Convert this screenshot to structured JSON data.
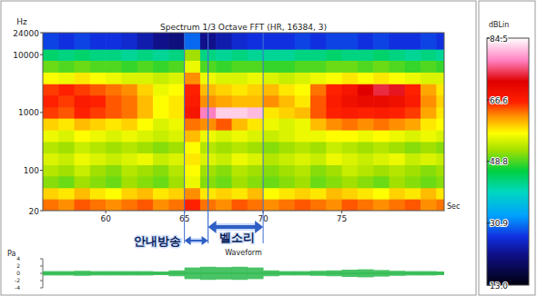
{
  "chart_data": {
    "type": "heatmap",
    "title": "Spectrum 1/3 Octave FFT (HR, 16384, 3)",
    "x_label": "Sec",
    "y_label": "Hz",
    "log": "y",
    "xlim": [
      56,
      81.5
    ],
    "xticks": [
      60,
      65,
      70,
      75
    ],
    "ylim": [
      20,
      24000
    ],
    "yticks": [
      20,
      100,
      1000,
      10000,
      24000
    ],
    "x_edges": [
      56,
      57,
      58,
      59,
      60,
      61,
      62,
      63,
      64,
      65,
      66,
      67,
      68,
      69,
      70,
      71,
      72,
      73,
      74,
      75,
      76,
      77,
      78,
      79,
      80,
      81,
      81.5
    ],
    "y_edges": [
      20,
      32,
      50,
      80,
      125,
      200,
      315,
      500,
      800,
      1250,
      2000,
      3150,
      5000,
      8000,
      12500,
      24000
    ],
    "cells": [
      [
        63,
        62,
        64,
        63,
        62,
        63,
        64,
        62,
        63,
        66,
        63,
        62,
        64,
        63,
        62,
        63,
        64,
        63,
        62,
        64,
        63,
        62,
        63,
        64,
        62,
        63
      ],
      [
        59,
        58,
        60,
        58,
        57,
        59,
        60,
        58,
        59,
        62,
        58,
        59,
        58,
        60,
        57,
        58,
        59,
        58,
        60,
        59,
        58,
        57,
        59,
        58,
        60,
        58
      ],
      [
        51,
        50,
        52,
        51,
        50,
        52,
        51,
        50,
        52,
        56,
        51,
        50,
        52,
        51,
        50,
        51,
        52,
        50,
        51,
        52,
        51,
        50,
        52,
        51,
        50,
        51
      ],
      [
        53,
        52,
        54,
        52,
        51,
        53,
        52,
        51,
        53,
        57,
        52,
        51,
        53,
        52,
        51,
        52,
        53,
        51,
        52,
        54,
        53,
        52,
        53,
        52,
        51,
        52
      ],
      [
        55,
        54,
        56,
        55,
        54,
        55,
        56,
        54,
        55,
        58,
        55,
        54,
        56,
        55,
        53,
        54,
        55,
        54,
        56,
        55,
        54,
        55,
        56,
        54,
        55,
        54
      ],
      [
        53,
        52,
        54,
        53,
        52,
        53,
        52,
        51,
        52,
        57,
        53,
        52,
        53,
        52,
        51,
        52,
        53,
        52,
        54,
        53,
        52,
        53,
        52,
        51,
        52,
        51
      ],
      [
        56,
        55,
        57,
        56,
        55,
        56,
        55,
        54,
        55,
        60,
        56,
        55,
        56,
        55,
        54,
        55,
        56,
        56,
        57,
        57,
        56,
        57,
        56,
        55,
        56,
        55
      ],
      [
        59,
        58,
        60,
        59,
        58,
        59,
        57,
        55,
        56,
        63,
        62,
        64,
        60,
        58,
        56,
        55,
        56,
        60,
        62,
        63,
        62,
        63,
        62,
        61,
        58,
        57
      ],
      [
        65,
        64,
        66,
        65,
        64,
        63,
        60,
        57,
        58,
        68,
        78,
        82,
        82,
        81,
        58,
        59,
        60,
        64,
        66,
        67,
        66,
        67,
        66,
        65,
        61,
        58
      ],
      [
        66,
        65,
        67,
        66,
        64,
        63,
        60,
        57,
        58,
        67,
        62,
        61,
        60,
        60,
        62,
        60,
        58,
        64,
        67,
        69,
        70,
        70,
        69,
        67,
        62,
        59
      ],
      [
        65,
        66,
        65,
        64,
        63,
        62,
        59,
        56,
        57,
        66,
        60,
        59,
        58,
        59,
        60,
        58,
        57,
        63,
        66,
        68,
        72,
        74,
        73,
        66,
        61,
        58
      ],
      [
        57,
        56,
        58,
        57,
        56,
        55,
        55,
        54,
        55,
        62,
        56,
        55,
        55,
        56,
        55,
        54,
        55,
        56,
        57,
        58,
        57,
        58,
        57,
        56,
        55,
        55
      ],
      [
        50,
        49,
        50,
        49,
        49,
        48,
        49,
        48,
        49,
        56,
        49,
        48,
        49,
        49,
        48,
        48,
        49,
        49,
        50,
        50,
        49,
        50,
        49,
        48,
        49,
        48
      ],
      [
        44,
        43,
        44,
        43,
        43,
        42,
        43,
        42,
        43,
        52,
        43,
        42,
        43,
        42,
        42,
        42,
        43,
        43,
        44,
        43,
        43,
        44,
        43,
        42,
        43,
        42
      ],
      [
        28,
        27,
        28,
        27,
        27,
        26,
        24,
        22,
        21,
        30,
        22,
        24,
        26,
        27,
        27,
        27,
        28,
        27,
        28,
        28,
        27,
        28,
        27,
        27,
        28,
        27
      ]
    ],
    "colorbar": {
      "label": "dBLin",
      "range": [
        13,
        84.5
      ],
      "ticks": [
        84.5,
        66.6,
        48.8,
        30.9,
        {
          "value": 13,
          "label": "13.0"
        }
      ]
    },
    "annotations": [
      {
        "text": "안내방송",
        "x": [
          65,
          66.5
        ]
      },
      {
        "text": "벨소리",
        "x": [
          66.5,
          70
        ]
      }
    ],
    "waveform": {
      "title": "Waveform",
      "y_label": "Pa",
      "ylim": [
        -4,
        4
      ],
      "yticks": [
        -4,
        -2,
        0,
        2,
        4
      ],
      "values": [
        0.6,
        0.6,
        0.7,
        0.6,
        0.6,
        0.6,
        0.6,
        0.5,
        0.8,
        1.6,
        1.8,
        1.7,
        1.8,
        1.6,
        0.8,
        0.6,
        0.6,
        0.7,
        0.8,
        1.0,
        1.1,
        0.9,
        0.7,
        0.6,
        0.6,
        0.5
      ]
    }
  }
}
